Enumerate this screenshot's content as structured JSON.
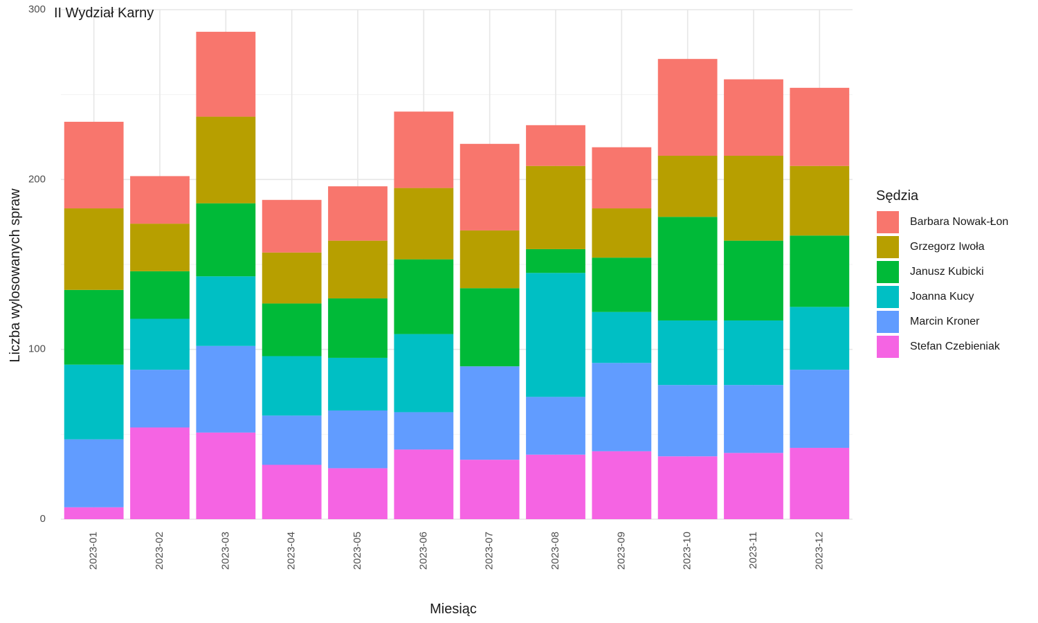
{
  "chart_data": {
    "type": "bar",
    "stacked": true,
    "title": "II Wydział Karny",
    "xlabel": "Miesiąc",
    "ylabel": "Liczba wylosowanych spraw",
    "ylim": [
      0,
      300
    ],
    "yticks": [
      0,
      100,
      200,
      300
    ],
    "grid": true,
    "legend_title": "Sędzia",
    "legend_position": "right",
    "categories": [
      "2023-01",
      "2023-02",
      "2023-03",
      "2023-04",
      "2023-05",
      "2023-06",
      "2023-07",
      "2023-08",
      "2023-09",
      "2023-10",
      "2023-11",
      "2023-12"
    ],
    "series": [
      {
        "name": "Stefan Czebieniak",
        "color": "#F564E3",
        "values": [
          7,
          54,
          51,
          32,
          30,
          41,
          35,
          38,
          40,
          37,
          39,
          42
        ]
      },
      {
        "name": "Marcin Kroner",
        "color": "#619CFF",
        "values": [
          40,
          34,
          51,
          29,
          34,
          22,
          55,
          34,
          52,
          42,
          40,
          46
        ]
      },
      {
        "name": "Joanna Kucy",
        "color": "#00BFC4",
        "values": [
          44,
          30,
          41,
          35,
          31,
          46,
          0,
          73,
          30,
          38,
          38,
          37
        ]
      },
      {
        "name": "Janusz Kubicki",
        "color": "#00BA38",
        "values": [
          44,
          28,
          43,
          31,
          35,
          44,
          46,
          14,
          32,
          61,
          47,
          42
        ]
      },
      {
        "name": "Grzegorz Iwoła",
        "color": "#B79F00",
        "values": [
          48,
          28,
          51,
          30,
          34,
          42,
          34,
          49,
          29,
          36,
          50,
          41
        ]
      },
      {
        "name": "Barbara Nowak-Łon",
        "color": "#F8766D",
        "values": [
          51,
          28,
          50,
          31,
          32,
          45,
          51,
          24,
          36,
          57,
          45,
          46
        ]
      }
    ]
  }
}
